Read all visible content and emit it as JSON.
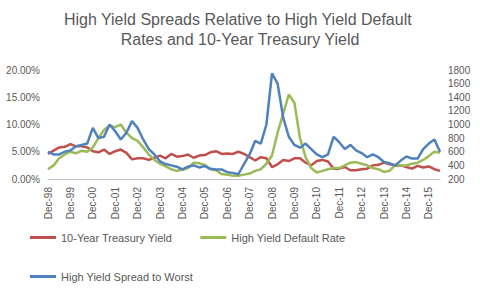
{
  "chart_data": {
    "type": "line",
    "title": "High Yield Spreads Relative to High Yield Default Rates and 10-Year Treasury Yield",
    "categories": [
      "Dec-98",
      null,
      null,
      null,
      "Dec-99",
      null,
      null,
      null,
      "Dec-00",
      null,
      null,
      null,
      "Dec-01",
      null,
      null,
      null,
      "Dec-02",
      null,
      null,
      null,
      "Dec-03",
      null,
      null,
      null,
      "Dec-04",
      null,
      null,
      null,
      "Dec-05",
      null,
      null,
      null,
      "Dec-06",
      null,
      null,
      null,
      "Dec-07",
      null,
      null,
      null,
      "Dec-08",
      null,
      null,
      null,
      "Dec-09",
      null,
      null,
      null,
      "Dec-10",
      null,
      null,
      null,
      "Dec-11",
      null,
      null,
      null,
      "Dec-12",
      null,
      null,
      null,
      "Dec-13",
      null,
      null,
      null,
      "Dec-14",
      null,
      null,
      null,
      "Dec-15",
      null,
      null
    ],
    "series": [
      {
        "name": "10-Year Treasury Yield",
        "color": "#c0504d",
        "axis": "y",
        "values": [
          4.6,
          5.2,
          5.8,
          5.9,
          6.4,
          6.0,
          6.0,
          5.8,
          5.1,
          4.9,
          5.4,
          4.6,
          5.1,
          5.4,
          4.8,
          3.6,
          3.8,
          3.8,
          3.5,
          3.9,
          4.3,
          3.8,
          4.6,
          4.1,
          4.2,
          4.5,
          3.9,
          4.3,
          4.4,
          4.9,
          5.1,
          4.6,
          4.7,
          4.6,
          5.0,
          4.6,
          4.0,
          3.4,
          4.0,
          3.8,
          2.2,
          2.7,
          3.5,
          3.3,
          3.8,
          3.8,
          3.0,
          2.5,
          3.3,
          3.5,
          3.2,
          1.9,
          1.9,
          2.2,
          1.6,
          1.6,
          1.8,
          1.9,
          2.5,
          2.6,
          3.0,
          2.7,
          2.5,
          2.5,
          2.2,
          1.9,
          2.4,
          2.1,
          2.3,
          1.8,
          1.5
        ]
      },
      {
        "name": "High Yield Default Rate",
        "color": "#9bbb59",
        "axis": "y",
        "values": [
          1.8,
          2.5,
          3.8,
          4.5,
          5.0,
          4.7,
          5.2,
          5.0,
          5.8,
          7.5,
          9.0,
          9.8,
          9.5,
          10.0,
          8.5,
          7.5,
          7.0,
          5.8,
          4.5,
          3.5,
          2.8,
          2.3,
          1.8,
          1.5,
          1.7,
          2.0,
          3.0,
          2.9,
          2.6,
          1.8,
          1.6,
          0.9,
          0.8,
          0.6,
          0.6,
          0.8,
          1.0,
          1.5,
          1.8,
          2.8,
          4.3,
          8.5,
          12.0,
          15.5,
          14.0,
          7.5,
          4.0,
          2.0,
          1.2,
          1.5,
          1.8,
          2.0,
          2.0,
          2.5,
          3.0,
          3.1,
          2.8,
          2.5,
          2.0,
          1.8,
          1.3,
          1.5,
          2.6,
          2.5,
          2.5,
          2.8,
          3.0,
          3.5,
          4.2,
          5.0,
          4.8
        ]
      },
      {
        "name": "High Yield Spread to Worst",
        "color": "#4f81bd",
        "axis": "y2",
        "values": [
          600,
          560,
          560,
          600,
          620,
          680,
          700,
          720,
          950,
          800,
          820,
          1000,
          900,
          780,
          880,
          1050,
          950,
          780,
          640,
          560,
          460,
          420,
          400,
          380,
          340,
          380,
          400,
          370,
          390,
          350,
          340,
          340,
          300,
          290,
          270,
          420,
          560,
          760,
          720,
          1000,
          1750,
          1600,
          1100,
          820,
          700,
          660,
          720,
          640,
          560,
          520,
          560,
          820,
          740,
          640,
          700,
          620,
          580,
          520,
          560,
          520,
          450,
          430,
          400,
          470,
          530,
          500,
          500,
          640,
          720,
          780,
          600
        ]
      }
    ],
    "ylim": [
      0,
      20
    ],
    "yticks": [
      {
        "value": 0,
        "label": "0.00%"
      },
      {
        "value": 5,
        "label": "5.00%"
      },
      {
        "value": 10,
        "label": "10.00%"
      },
      {
        "value": 15,
        "label": "15.00%"
      },
      {
        "value": 20,
        "label": "20.00%"
      }
    ],
    "y2lim": [
      200,
      1800
    ],
    "y2ticks": [
      200,
      400,
      600,
      800,
      1000,
      1200,
      1400,
      1600,
      1800
    ],
    "grid": false,
    "legend": "bottom"
  }
}
